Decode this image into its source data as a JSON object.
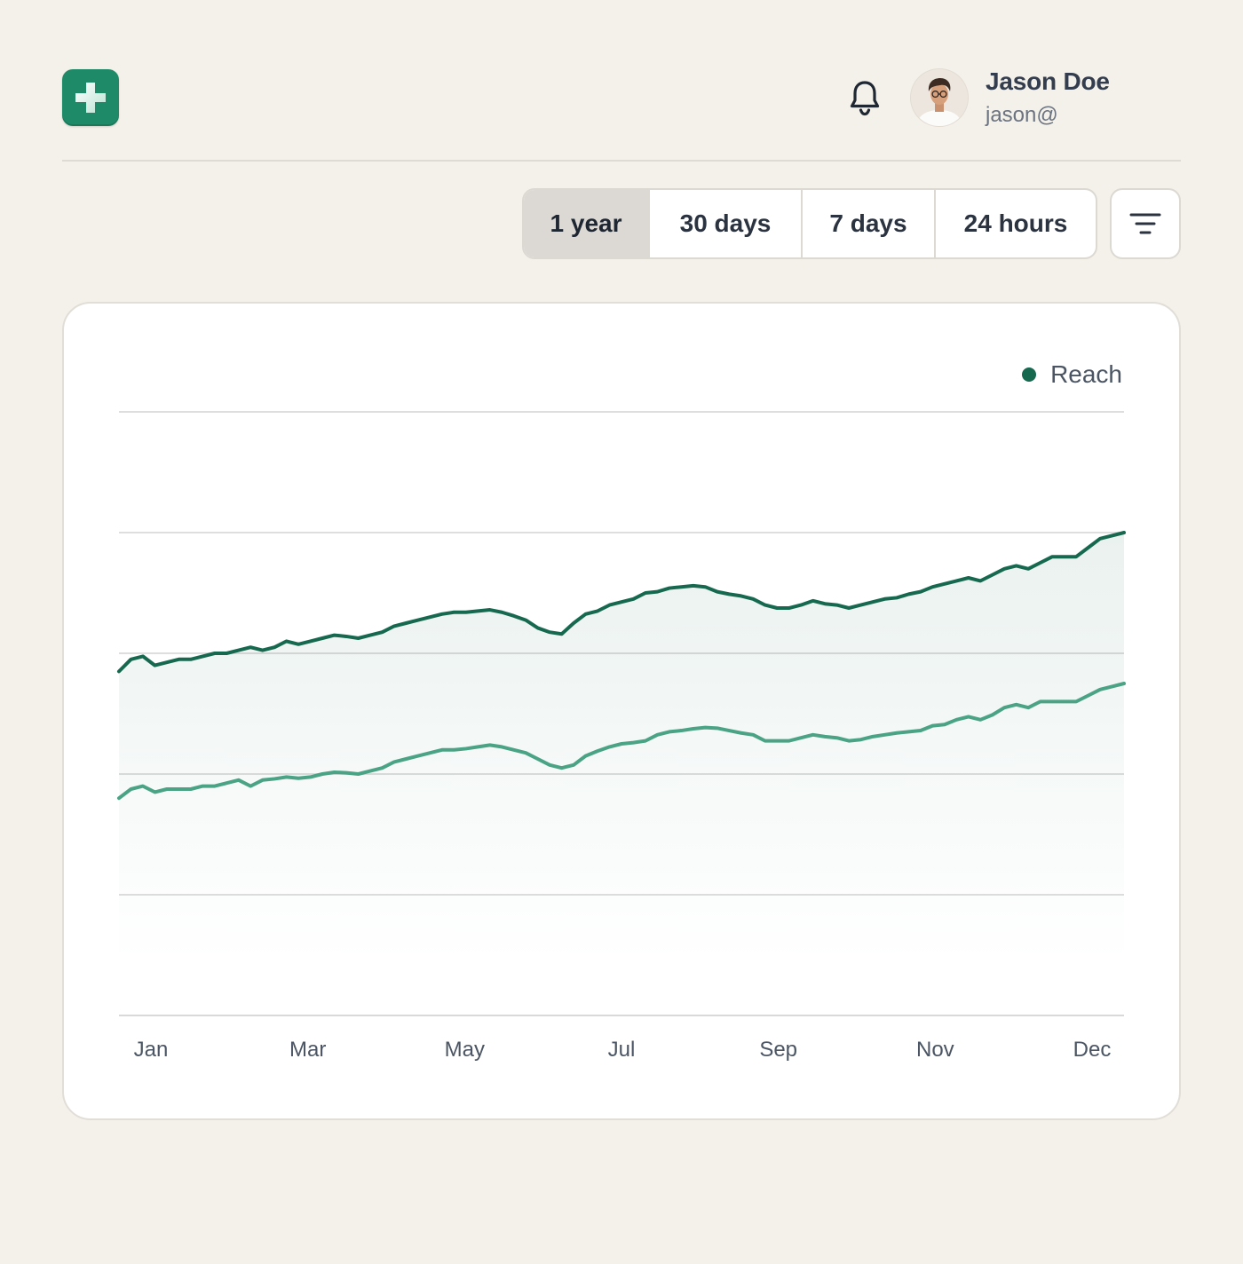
{
  "header": {
    "logo_icon": "plus-icon",
    "notification_icon": "bell-icon",
    "user": {
      "name": "Jason Doe",
      "email": "jason@"
    }
  },
  "toolbar": {
    "ranges": [
      {
        "label": "1 year",
        "active": true
      },
      {
        "label": "30 days",
        "active": false
      },
      {
        "label": "7 days",
        "active": false
      },
      {
        "label": "24 hours",
        "active": false
      }
    ],
    "filter_icon": "filter-icon"
  },
  "colors": {
    "accent": "#1f8a67",
    "series_primary": "#16694f",
    "series_secondary": "#4aa384",
    "background": "#f4f0ea"
  },
  "chart_data": {
    "type": "area",
    "title": "",
    "xlabel": "",
    "ylabel": "",
    "ylim": [
      0,
      100
    ],
    "grid": true,
    "legend_position": "top-right",
    "tick_labels": [
      "Jan",
      "Mar",
      "May",
      "Jul",
      "Sep",
      "Nov",
      "Dec"
    ],
    "x": [
      0,
      0.5,
      1,
      1.5,
      2,
      2.5,
      3,
      3.5,
      4,
      4.5,
      5,
      5.5,
      6,
      6.5,
      7,
      7.5,
      8,
      8.5,
      9,
      9.5,
      10,
      10.5,
      11,
      11.5,
      12,
      12.5,
      13,
      13.5,
      14,
      14.5,
      15,
      15.5,
      16,
      16.5,
      17,
      17.5,
      18,
      18.5,
      19,
      19.5,
      20,
      20.5,
      21,
      21.5,
      22,
      22.5,
      23,
      23.5,
      24,
      24.5,
      25,
      25.5,
      26,
      26.5,
      27,
      27.5,
      28,
      28.5,
      29,
      29.5,
      30,
      30.5,
      31,
      31.5,
      32,
      32.5,
      33,
      33.5,
      34,
      34.5,
      35,
      35.5,
      36,
      36.5,
      37,
      37.5,
      38,
      38.5,
      39,
      39.5,
      40,
      40.5,
      41,
      41.5,
      42
    ],
    "series": [
      {
        "name": "Reach",
        "values": [
          57,
          59,
          59.5,
          58,
          58.5,
          59,
          59,
          59.5,
          60,
          60,
          60.5,
          61,
          60.5,
          61,
          62,
          61.5,
          62,
          62.5,
          63,
          62.8,
          62.5,
          63,
          63.5,
          64.5,
          65,
          65.5,
          66,
          66.5,
          66.8,
          66.8,
          67,
          67.2,
          66.8,
          66.2,
          65.5,
          64.2,
          63.5,
          63.2,
          65,
          66.5,
          67,
          68,
          68.5,
          69,
          70,
          70.2,
          70.8,
          71,
          71.2,
          71,
          70.2,
          69.8,
          69.5,
          69,
          68,
          67.5,
          67.5,
          68,
          68.7,
          68.2,
          68,
          67.5,
          68,
          68.5,
          69,
          69.2,
          69.8,
          70.2,
          71,
          71.5,
          72,
          72.5,
          72,
          73,
          74,
          74.5,
          74,
          75,
          76,
          76,
          76,
          77.5,
          79,
          79.5,
          80
        ]
      },
      {
        "name": "",
        "values": [
          36,
          37.5,
          38,
          37,
          37.5,
          37.5,
          37.5,
          38,
          38,
          38.5,
          39,
          38,
          39,
          39.2,
          39.5,
          39.3,
          39.5,
          40,
          40.3,
          40.2,
          40,
          40.5,
          41,
          42,
          42.5,
          43,
          43.5,
          44,
          44,
          44.2,
          44.5,
          44.8,
          44.5,
          44,
          43.5,
          42.5,
          41.5,
          41,
          41.5,
          43,
          43.8,
          44.5,
          45,
          45.2,
          45.5,
          46.5,
          47,
          47.2,
          47.5,
          47.7,
          47.6,
          47.2,
          46.8,
          46.5,
          45.5,
          45.5,
          45.5,
          46,
          46.5,
          46.2,
          46,
          45.5,
          45.7,
          46.2,
          46.5,
          46.8,
          47,
          47.2,
          48,
          48.2,
          49,
          49.5,
          49,
          49.8,
          51,
          51.5,
          51,
          52,
          52,
          52,
          52,
          53,
          54,
          54.5,
          55
        ]
      }
    ]
  }
}
